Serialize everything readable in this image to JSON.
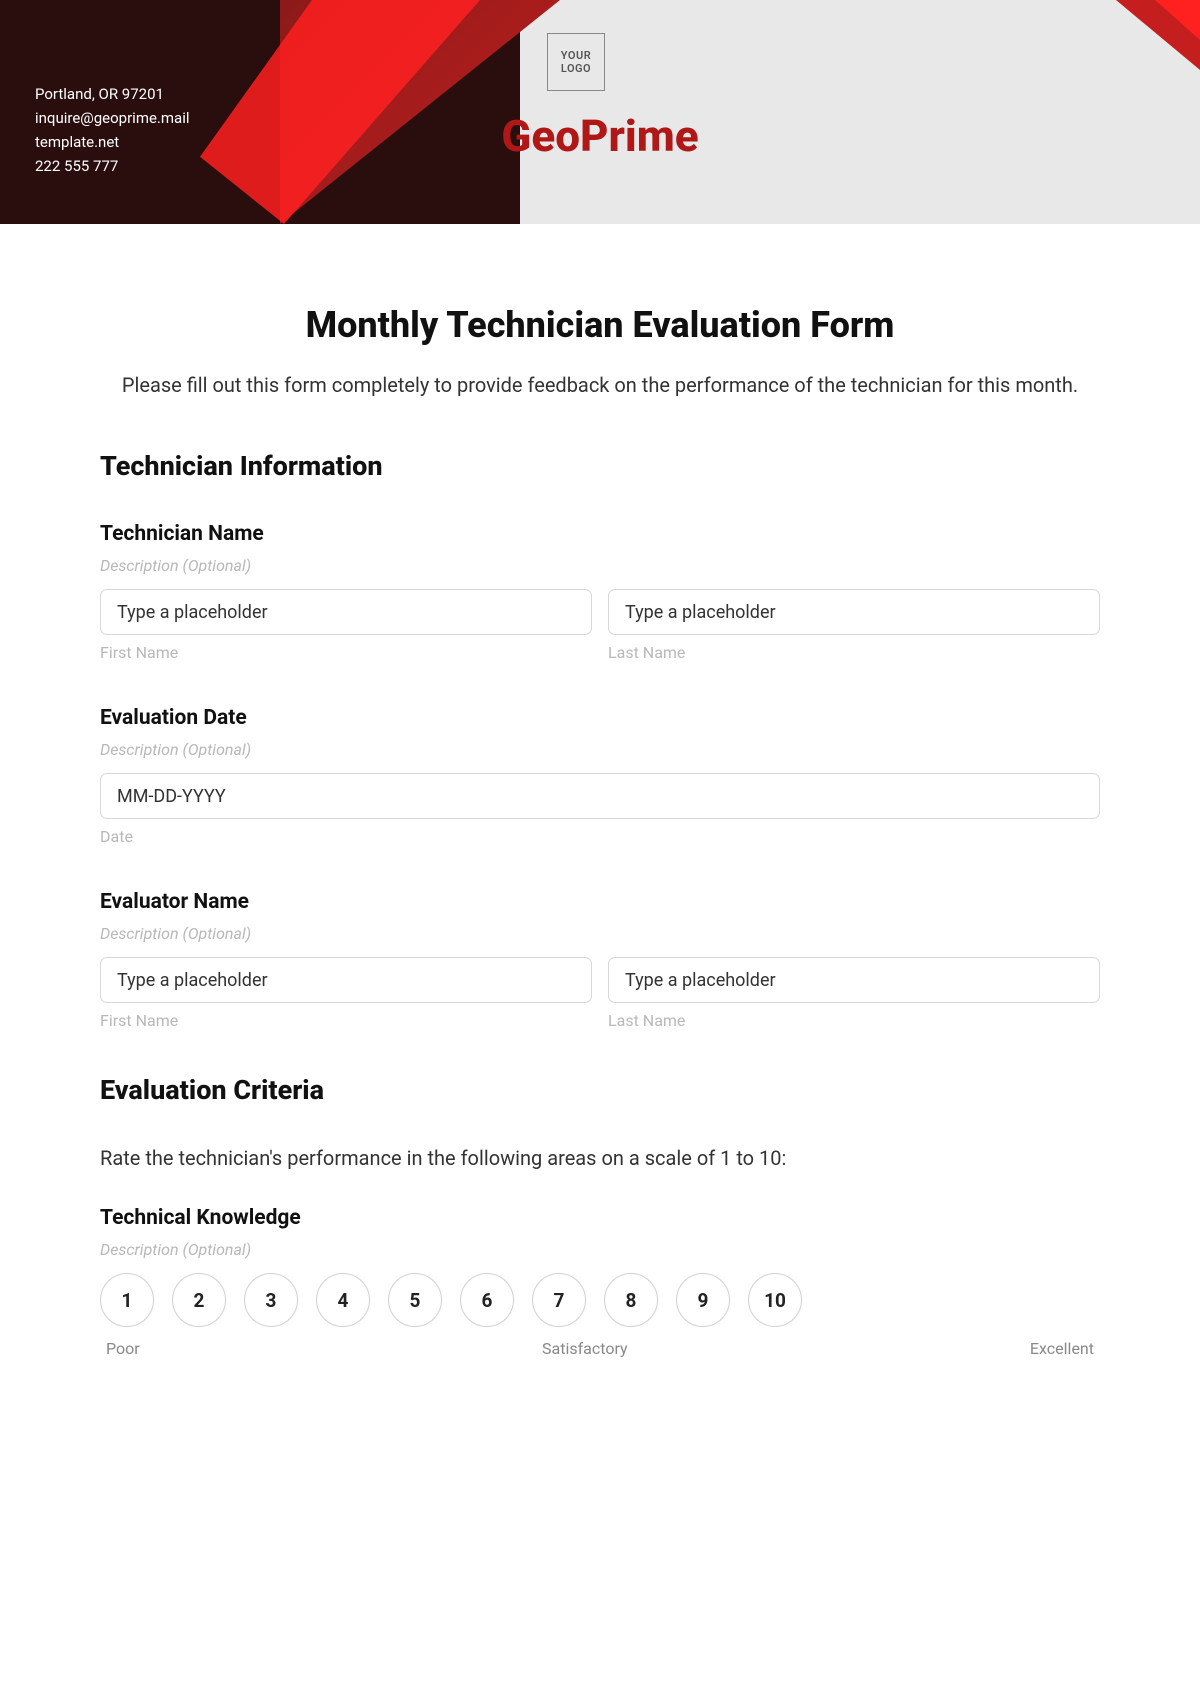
{
  "header": {
    "contact": {
      "address": "Portland, OR 97201",
      "email": "inquire@geoprime.mail",
      "website": "template.net",
      "phone": "222 555 777"
    },
    "logo_text": "YOUR LOGO",
    "brand_name": "GeoPrime",
    "colors": {
      "dark": "#2a0d0d",
      "red_primary": "#c41e1e",
      "red_bright": "#ff2020",
      "brand_text": "#b01818",
      "header_bg": "#e8e8e8"
    }
  },
  "form": {
    "title": "Monthly Technician Evaluation Form",
    "description": "Please fill out this form completely to provide feedback on the performance of the technician for this month."
  },
  "sections": {
    "tech_info": {
      "title": "Technician Information",
      "fields": {
        "tech_name": {
          "label": "Technician Name",
          "hint": "Description (Optional)",
          "first_placeholder": "Type a placeholder",
          "first_sublabel": "First Name",
          "last_placeholder": "Type a placeholder",
          "last_sublabel": "Last Name"
        },
        "eval_date": {
          "label": "Evaluation Date",
          "hint": "Description (Optional)",
          "placeholder": "MM-DD-YYYY",
          "sublabel": "Date"
        },
        "evaluator_name": {
          "label": "Evaluator Name",
          "hint": "Description (Optional)",
          "first_placeholder": "Type a placeholder",
          "first_sublabel": "First Name",
          "last_placeholder": "Type a placeholder",
          "last_sublabel": "Last Name"
        }
      }
    },
    "criteria": {
      "title": "Evaluation Criteria",
      "description": "Rate the technician's performance in the following areas on a scale of 1 to 10:",
      "fields": {
        "tech_knowledge": {
          "label": "Technical Knowledge",
          "hint": "Description (Optional)",
          "ratings": [
            "1",
            "2",
            "3",
            "4",
            "5",
            "6",
            "7",
            "8",
            "9",
            "10"
          ],
          "scale_low": "Poor",
          "scale_mid": "Satisfactory",
          "scale_high": "Excellent"
        }
      }
    }
  }
}
